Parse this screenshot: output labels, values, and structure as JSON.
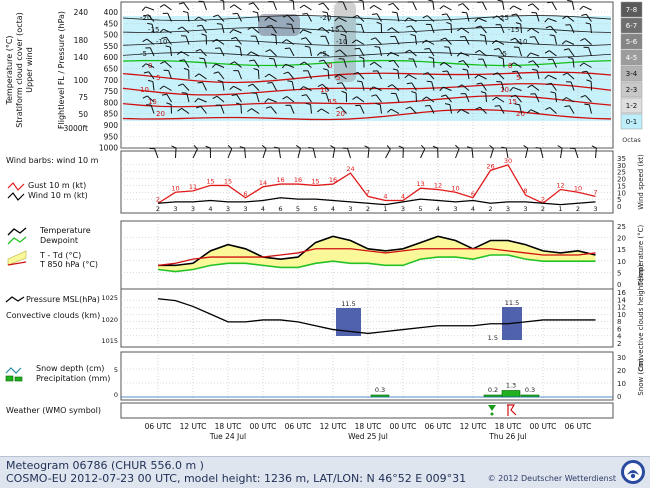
{
  "colors": {
    "grid": "#b9b9b9",
    "panel_border": "#555555",
    "cloud_fill": "#bdeefa",
    "temperature_line": "#d01010",
    "freezing_line": "#16c016",
    "isotherm_label": "#d01010",
    "gust_line": "#e01b1b",
    "wind_line": "#000000",
    "dewpoint_line": "#25c225",
    "spread_fill": "#fbf89a",
    "t850_line": "#d01010",
    "pressure_line": "#000000",
    "convective_cloud": "#33479e",
    "precip_bar": "#20b020",
    "precip_outline": "#006600",
    "octas_scale": [
      "#5a5a5a",
      "#6e6e6e",
      "#858585",
      "#9c9c9c",
      "#b2b2b2",
      "#c8c8c8",
      "#dedede",
      "#bdeefa"
    ]
  },
  "panels": {
    "upper_air": {
      "ylabel_lines": [
        "Temperature (°C)",
        "Stratiform cloud cover (octa)",
        "Upper wind"
      ],
      "ylabel_right_lines": [
        "Flightlevel FL / Pressure (hPa)"
      ],
      "fl_ticks": [
        "240",
        "180",
        "140",
        "100",
        "75",
        "50",
        "3000ft"
      ],
      "hpa_ticks": [
        "400",
        "450",
        "500",
        "550",
        "600",
        "650",
        "700",
        "750",
        "800",
        "850",
        "900",
        "950",
        "1000"
      ],
      "isotherm_labels": [
        "-20",
        "-15",
        "-10",
        "-5",
        "0",
        "5",
        "10",
        "15",
        "20",
        "-20",
        "-15",
        "-10",
        "-5",
        "0",
        "5",
        "10",
        "15",
        "20",
        "25",
        "-15",
        "-10",
        "-5",
        "0",
        "5",
        "10",
        "15",
        "20"
      ],
      "octas_labels": [
        "7-8",
        "6-7",
        "5-6",
        "4-5",
        "3-4",
        "2-3",
        "1-2",
        "0-1"
      ],
      "octas_title": "Octas"
    },
    "wind": {
      "title": "Wind barbs: wind 10 m",
      "legend": [
        "Gust 10 m (kt)",
        "Wind 10 m (kt)"
      ],
      "right_label": "Wind speed (kt)",
      "right_ticks": [
        "35",
        "30",
        "25",
        "20",
        "15",
        "10",
        "5",
        "0"
      ]
    },
    "temperature": {
      "legend": [
        "Temperature",
        "Dewpoint",
        "T - Td (°C)",
        "T 850 hPa (°C)"
      ],
      "right_label": "Temperature (°C)",
      "right_ticks": [
        "25",
        "20",
        "15",
        "10",
        "5",
        "0"
      ]
    },
    "pressure": {
      "legend": [
        "Pressure MSL(hPa)",
        "Convective clouds (km)"
      ],
      "left_ticks": [
        "1025",
        "1020",
        "1015"
      ],
      "right_label": "Convective clouds height (km)",
      "right_ticks": [
        "16",
        "14",
        "12",
        "10",
        "8",
        "6",
        "4",
        "2"
      ]
    },
    "snow": {
      "legend": [
        "Snow depth (cm)",
        "Precipitation (mm)"
      ],
      "left_ticks": [
        "5",
        "0"
      ],
      "right_label": "Snow (cm)",
      "right_ticks": [
        "30",
        "20",
        "10",
        "0"
      ],
      "precip_labels": [
        "0.3",
        "0.2",
        "1.3",
        "0.3"
      ]
    },
    "weather": {
      "title": "Weather (WMO symbol)"
    }
  },
  "x_axis": {
    "time_ticks": [
      "06 UTC",
      "12 UTC",
      "18 UTC",
      "00 UTC",
      "06 UTC",
      "12 UTC",
      "18 UTC",
      "00 UTC",
      "06 UTC",
      "12 UTC",
      "18 UTC",
      "00 UTC",
      "06 UTC"
    ],
    "day_labels": [
      "Tue 24 Jul",
      "Wed 25 Jul",
      "Thu 26 Jul"
    ]
  },
  "footer": {
    "line1": "Meteogram 06786 (CHUR  556.0 m )",
    "line2": "COSMO-EU 2012-07-23  00 UTC, model height: 1236 m,  LAT/LON: N 46°52 E 009°31",
    "copyright": "© 2012 Deutscher Wetterdienst"
  },
  "chart_data": [
    {
      "type": "line",
      "title": "Upper air: isotherms and stratiform cloud cover",
      "xlabel": "",
      "ylabel": "Flightlevel FL / Pressure (hPa)",
      "y_pressure_range_hPa": [
        1000,
        400
      ],
      "series_wind_speed_10m": null,
      "note_values": "isotherm labels as printed"
    },
    {
      "type": "line",
      "title": "Wind barbs: wind 10 m",
      "x": [
        "06",
        "09",
        "12",
        "15",
        "18",
        "21",
        "00",
        "03",
        "06",
        "09",
        "12",
        "15",
        "18",
        "21",
        "00",
        "03",
        "06",
        "09",
        "12",
        "15",
        "18",
        "21",
        "00",
        "03",
        "06",
        "09"
      ],
      "series": [
        {
          "name": "Gust 10 m (kt)",
          "values": [
            2,
            10,
            11,
            15,
            15,
            6,
            14,
            16,
            16,
            15,
            16,
            24,
            7,
            4,
            4,
            13,
            12,
            10,
            6,
            26,
            30,
            8,
            2,
            12,
            10,
            7
          ]
        },
        {
          "name": "Wind 10 m (kt)",
          "values": [
            2,
            3,
            3,
            4,
            3,
            3,
            4,
            6,
            5,
            5,
            4,
            3,
            2,
            1,
            3,
            5,
            4,
            3,
            4,
            2,
            3,
            3,
            2,
            1,
            2,
            3
          ]
        }
      ],
      "ylim": [
        0,
        35
      ]
    },
    {
      "type": "area",
      "title": "Temperature / Dewpoint",
      "series": [
        {
          "name": "Temperature",
          "values": [
            9,
            9,
            10,
            16,
            19,
            17,
            13,
            12,
            13,
            20,
            23,
            21,
            17,
            16,
            17,
            20,
            23,
            21,
            17,
            21,
            21,
            19,
            16,
            15,
            16,
            14
          ]
        },
        {
          "name": "Dewpoint",
          "values": [
            7,
            6,
            7,
            9,
            10,
            10,
            9,
            8,
            8,
            10,
            11,
            10,
            10,
            9,
            9,
            12,
            13,
            13,
            12,
            14,
            14,
            12,
            11,
            11,
            11,
            11
          ]
        },
        {
          "name": "T 850 hPa (°C)",
          "values": [
            9,
            10,
            12,
            13,
            13,
            13,
            13,
            14,
            15,
            17,
            17,
            17,
            16,
            15,
            16,
            17,
            17,
            17,
            17,
            17,
            16,
            15,
            14,
            14,
            14,
            15
          ]
        }
      ],
      "ylim": [
        0,
        28
      ]
    },
    {
      "type": "line",
      "title": "Pressure MSL / Convective clouds",
      "series": [
        {
          "name": "Pressure MSL(hPa)",
          "values": [
            1025,
            1024.5,
            1023,
            1021,
            1019,
            1019,
            1019.5,
            1019.5,
            1019,
            1018,
            1017,
            1016.5,
            1016,
            1016.5,
            1017,
            1017.5,
            1018,
            1018,
            1018,
            1018.5,
            1018.5,
            1019,
            1019.5,
            1019.5,
            1019.5,
            1019.5
          ]
        }
      ],
      "convective_clouds_km": [
        {
          "label_top": "11.5",
          "label_base": ""
        },
        {
          "label_top": "11.5",
          "label_base": "1.5"
        }
      ],
      "ylim": [
        1013,
        1027
      ]
    },
    {
      "type": "bar",
      "title": "Snow depth / Precipitation",
      "categories": [
        "Wed 25 Jul 18 UTC",
        "Thu 26 Jul 12 UTC",
        "Thu 26 Jul 15 UTC",
        "Thu 26 Jul 18 UTC"
      ],
      "values": [
        0.3,
        0.2,
        1.3,
        0.3
      ],
      "ylim": [
        0,
        8
      ]
    }
  ]
}
